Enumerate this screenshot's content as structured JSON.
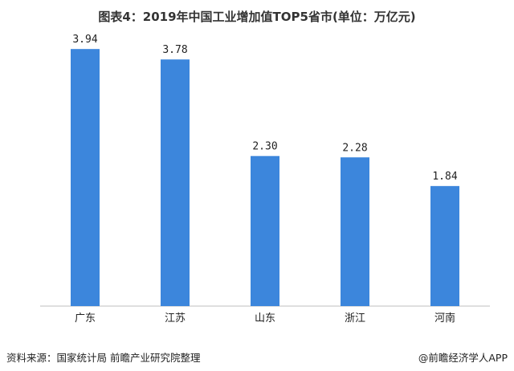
{
  "title": "图表4：2019年中国工业增加值TOP5省市(单位：万亿元)",
  "source_text": "资料来源：国家统计局 前瞻产业研究院整理",
  "credit_text": "@前瞻经济学人APP",
  "bar_color": "#3c86dc",
  "chart_data": {
    "type": "bar",
    "title": "图表4：2019年中国工业增加值TOP5省市(单位：万亿元)",
    "categories": [
      "广东",
      "江苏",
      "山东",
      "浙江",
      "河南"
    ],
    "values": [
      3.94,
      3.78,
      2.3,
      2.28,
      1.84
    ],
    "value_labels": [
      "3.94",
      "3.78",
      "2.30",
      "2.28",
      "1.84"
    ],
    "xlabel": "",
    "ylabel": "",
    "ylim": [
      0,
      4.2
    ],
    "grid": false,
    "legend": "none"
  }
}
